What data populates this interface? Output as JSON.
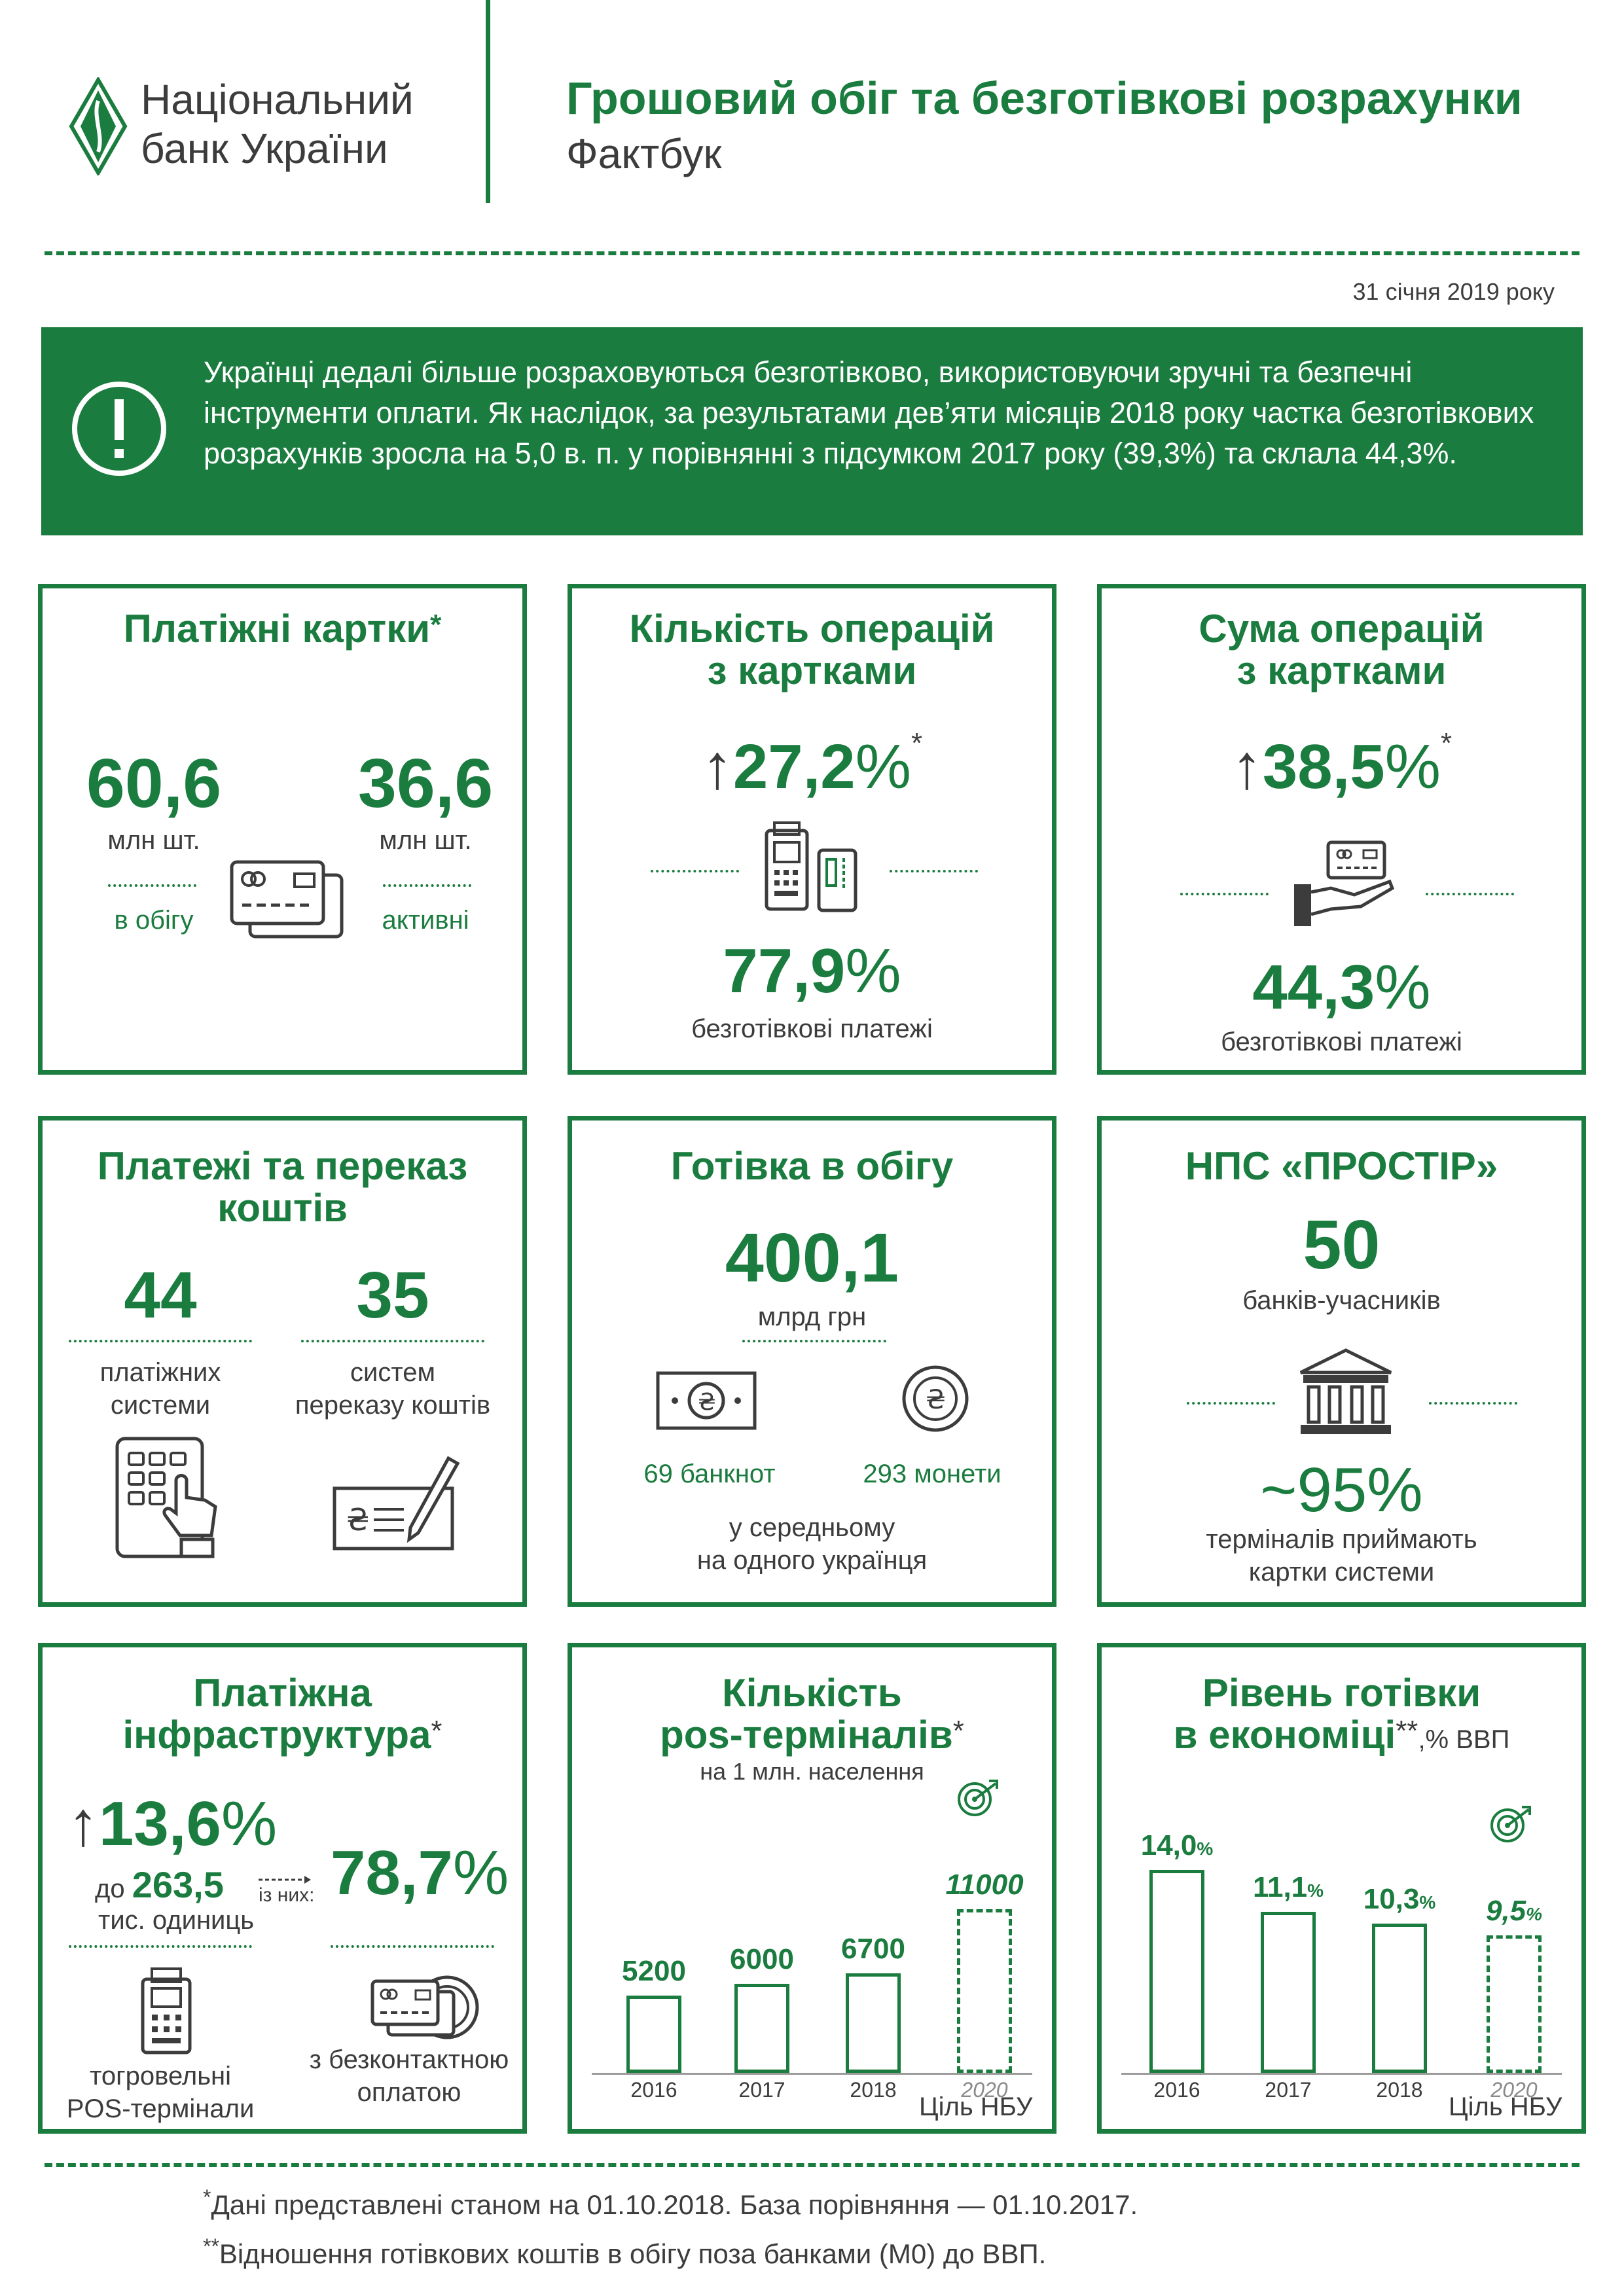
{
  "header": {
    "logo_line1": "Національний",
    "logo_line2": "банк України",
    "title": "Грошовий обіг та безготівкові розрахунки",
    "subtitle": "Фактбук",
    "date": "31 січня 2019 року"
  },
  "alert": {
    "icon": "exclamation-icon",
    "text": "Українці дедалі більше розраховуються безготівково, використовуючи зручні та безпечні інструменти оплати. Як наслідок, за результатами дев’яти місяців 2018 року частка безготівкових розрахунків зросла на 5,0 в. п. у порівнянні з підсумком 2017 року (39,3%) та склала 44,3%."
  },
  "cards": {
    "title": "Платіжні картки",
    "star": "*",
    "left_value": "60,6",
    "left_unit": "млн шт.",
    "left_label": "в обігу",
    "right_value": "36,6",
    "right_unit": "млн шт.",
    "right_label": "активні"
  },
  "card_ops_count": {
    "title_line1": "Кількість операцій",
    "title_line2": "з картками",
    "arrow": "↑",
    "growth": "27,2",
    "growth_pct": "%",
    "star": "*",
    "share": "77,9",
    "share_pct": "%",
    "share_label": "безготівкові платежі"
  },
  "card_ops_sum": {
    "title_line1": "Сума операцій",
    "title_line2": "з картками",
    "arrow": "↑",
    "growth": "38,5",
    "growth_pct": "%",
    "star": "*",
    "share": "44,3",
    "share_pct": "%",
    "share_label": "безготівкові платежі"
  },
  "payments": {
    "title_line1": "Платежі та переказ",
    "title_line2": "коштів",
    "left_value": "44",
    "left_label1": "платіжних",
    "left_label2": "системи",
    "right_value": "35",
    "right_label1": "систем",
    "right_label2": "переказу коштів"
  },
  "cash": {
    "title": "Готівка в обігу",
    "value": "400,1",
    "unit": "млрд грн",
    "banknotes": "69 банкнот",
    "coins": "293 монети",
    "note1": "у середньому",
    "note2": "на одного українця"
  },
  "prostir": {
    "title": "НПС «ПРОСТІР»",
    "banks": "50",
    "banks_label": "банків-учасників",
    "terminals": "~95",
    "terminals_pct": "%",
    "terminals_label1": "терміналів приймають",
    "terminals_label2": "картки системи"
  },
  "infra": {
    "title_line1": "Платіжна",
    "title_line2": "інфраструктура",
    "star": "*",
    "arrow": "↑",
    "growth": "13,6",
    "growth_pct": "%",
    "to_label": "до",
    "to_value": "263,5",
    "to_unit": "тис. одиниць",
    "of_them": "із них:",
    "contactless": "78,7",
    "contactless_pct": "%",
    "left_caption1": "тогровельні",
    "left_caption2": "POS-термінали",
    "right_caption1": "з безконтактною",
    "right_caption2": "оплатою"
  },
  "pos_chart": {
    "title_line1": "Кількість",
    "title_line2": "pos-терміналів",
    "star": "*",
    "subtitle": "на 1 млн. населення",
    "target_label": "Ціль НБУ",
    "value_labels": [
      "5200",
      "6000",
      "6700",
      "11000"
    ]
  },
  "cash_level_chart": {
    "title_line1": "Рівень готівки",
    "title_line2": "в економіці",
    "star": "**",
    "unit": ",% ВВП",
    "target_label": "Ціль НБУ",
    "value_labels": [
      "14,0",
      "11,1",
      "10,3",
      "9,5"
    ],
    "pct_sign": "%"
  },
  "chart_data": [
    {
      "type": "bar",
      "title": "Кількість pos-терміналів",
      "subtitle": "на 1 млн. населення",
      "categories": [
        "2016",
        "2017",
        "2018",
        "2020"
      ],
      "values": [
        5200,
        6000,
        6700,
        11000
      ],
      "target_index": 3,
      "ylim": [
        0,
        11000
      ]
    },
    {
      "type": "bar",
      "title": "Рівень готівки в економіці",
      "ylabel": "% ВВП",
      "categories": [
        "2016",
        "2017",
        "2018",
        "2020"
      ],
      "values": [
        14.0,
        11.1,
        10.3,
        9.5
      ],
      "target_index": 3,
      "ylim": [
        0,
        14.0
      ]
    }
  ],
  "footnotes": {
    "f1_mark": "*",
    "f1": "Дані представлені станом на 01.10.2018. База порівняння — 01.10.2017.",
    "f2_mark": "**",
    "f2": "Відношення готівкових коштів в обігу поза банками (М0) до ВВП."
  },
  "colors": {
    "accent": "#1b7c3f",
    "text": "#3c3c3c"
  }
}
